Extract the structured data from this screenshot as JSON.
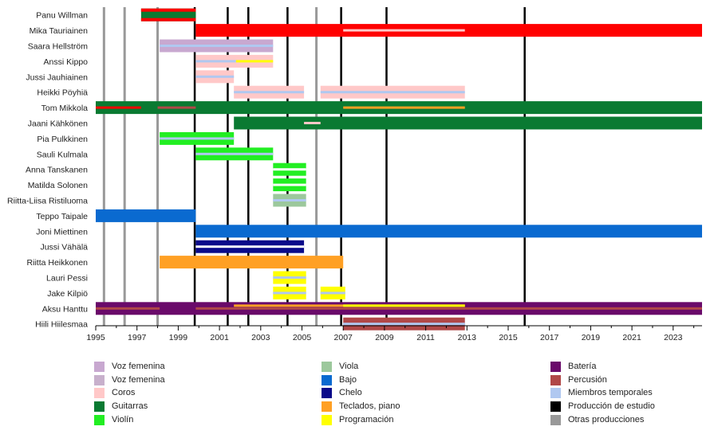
{
  "chart_data": {
    "type": "timeline",
    "x_ticks": [
      "1995",
      "1997",
      "1999",
      "2001",
      "2003",
      "2005",
      "2007",
      "2009",
      "2011",
      "2013",
      "2015",
      "2017",
      "2019",
      "2021",
      "2023"
    ],
    "xlim": [
      1995,
      2024.4
    ],
    "colors": {
      "voz_fem_1": "#c8a8d0",
      "voz_fem_2": "#c8b0cc",
      "coros": "#ffc8c8",
      "guitarras": "#0a7a32",
      "violin": "#22ee22",
      "viola": "#9cc89c",
      "bajo": "#0a6ad0",
      "chelo": "#0a0a8a",
      "teclados": "#ffa024",
      "programacion": "#ffff00",
      "bateria": "#6a0a6a",
      "percusion": "#b04848",
      "temporales": "#b0c8f0",
      "estudio": "#000000",
      "otras": "#999999",
      "voz_masc": "#ff0000"
    },
    "studio_releases": [
      1999.8,
      2001.4,
      2002.4,
      2004.3,
      2006.9,
      2009.1,
      2015.8
    ],
    "other_releases": [
      1995.4,
      1996.4,
      1998.0,
      2005.7
    ],
    "members": [
      {
        "name": "Panu Willman",
        "bars": [
          {
            "start": 1997.2,
            "end": 1999.85,
            "color": "guitarras",
            "stripes": [
              {
                "start": 1997.2,
                "end": 1999.85,
                "color": "voz_masc",
                "pos": "edges"
              }
            ]
          }
        ]
      },
      {
        "name": "Mika Tauriainen",
        "bars": [
          {
            "start": 1999.85,
            "end": 2024.4,
            "color": "voz_masc",
            "stripes": [
              {
                "start": 2007.0,
                "end": 2012.9,
                "color": "coros",
                "pos": "center"
              }
            ]
          }
        ]
      },
      {
        "name": "Saara Hellström",
        "bars": [
          {
            "start": 1998.1,
            "end": 2003.6,
            "color": "voz_fem_1",
            "stripes": [
              {
                "start": 1998.1,
                "end": 2003.6,
                "color": "temporales",
                "pos": "center"
              }
            ]
          }
        ]
      },
      {
        "name": "Anssi Kippo",
        "bars": [
          {
            "start": 1999.85,
            "end": 2003.6,
            "color": "coros",
            "stripes": [
              {
                "start": 1999.85,
                "end": 2001.8,
                "color": "temporales",
                "pos": "center"
              },
              {
                "start": 2001.8,
                "end": 2003.6,
                "color": "programacion",
                "pos": "center"
              }
            ]
          }
        ]
      },
      {
        "name": "Jussi Jauhiainen",
        "bars": [
          {
            "start": 1999.85,
            "end": 2001.7,
            "color": "coros",
            "stripes": [
              {
                "start": 1999.85,
                "end": 2001.7,
                "color": "temporales",
                "pos": "center"
              }
            ]
          }
        ]
      },
      {
        "name": "Heikki Pöyhiä",
        "bars": [
          {
            "start": 2001.7,
            "end": 2005.1,
            "color": "coros",
            "stripes": [
              {
                "start": 2001.7,
                "end": 2005.1,
                "color": "temporales",
                "pos": "center"
              }
            ]
          },
          {
            "start": 2005.9,
            "end": 2012.9,
            "color": "coros",
            "stripes": [
              {
                "start": 2005.9,
                "end": 2012.9,
                "color": "temporales",
                "pos": "center"
              }
            ]
          }
        ]
      },
      {
        "name": "Tom Mikkola",
        "bars": [
          {
            "start": 1995.0,
            "end": 2024.4,
            "color": "guitarras",
            "stripes": [
              {
                "start": 1995.0,
                "end": 1997.2,
                "color": "voz_masc",
                "pos": "center"
              },
              {
                "start": 1998.0,
                "end": 1999.85,
                "color": "percusion",
                "pos": "center"
              },
              {
                "start": 2007.0,
                "end": 2012.9,
                "color": "teclados",
                "pos": "center"
              }
            ]
          }
        ]
      },
      {
        "name": "Jaani Kähkönen",
        "bars": [
          {
            "start": 2001.7,
            "end": 2024.4,
            "color": "guitarras",
            "stripes": [
              {
                "start": 2005.1,
                "end": 2005.9,
                "color": "coros",
                "pos": "center"
              }
            ]
          }
        ]
      },
      {
        "name": "Pia Pulkkinen",
        "bars": [
          {
            "start": 1998.1,
            "end": 2001.7,
            "color": "violin",
            "stripes": [
              {
                "start": 1998.1,
                "end": 2001.7,
                "color": "temporales",
                "pos": "center"
              }
            ]
          }
        ]
      },
      {
        "name": "Sauli Kulmala",
        "bars": [
          {
            "start": 1999.85,
            "end": 2003.6,
            "color": "violin",
            "stripes": [
              {
                "start": 1999.85,
                "end": 2003.6,
                "color": "temporales",
                "pos": "center"
              }
            ]
          }
        ]
      },
      {
        "name": "Anna Tanskanen",
        "bars": [
          {
            "start": 2003.6,
            "end": 2005.2,
            "color": "violin",
            "stripes": [
              {
                "start": 2003.6,
                "end": 2005.2,
                "color": "#ffffff",
                "pos": "center"
              }
            ]
          }
        ]
      },
      {
        "name": "Matilda Solonen",
        "bars": [
          {
            "start": 2003.6,
            "end": 2005.2,
            "color": "violin",
            "stripes": [
              {
                "start": 2003.6,
                "end": 2005.2,
                "color": "#ffffff",
                "pos": "center"
              }
            ]
          }
        ]
      },
      {
        "name": "Riitta-Liisa Ristiluoma",
        "bars": [
          {
            "start": 2003.6,
            "end": 2005.2,
            "color": "viola",
            "stripes": [
              {
                "start": 2003.6,
                "end": 2005.2,
                "color": "temporales",
                "pos": "center"
              }
            ]
          }
        ]
      },
      {
        "name": "Teppo Taipale",
        "bars": [
          {
            "start": 1995.0,
            "end": 1999.85,
            "color": "bajo",
            "stripes": []
          }
        ]
      },
      {
        "name": "Joni Miettinen",
        "bars": [
          {
            "start": 1999.85,
            "end": 2024.4,
            "color": "bajo",
            "stripes": []
          }
        ]
      },
      {
        "name": "Jussi Vähälä",
        "bars": [
          {
            "start": 1999.85,
            "end": 2005.1,
            "color": "chelo",
            "stripes": [
              {
                "start": 1999.85,
                "end": 2005.1,
                "color": "#ffffff",
                "pos": "center"
              }
            ]
          }
        ]
      },
      {
        "name": "Riitta Heikkonen",
        "bars": [
          {
            "start": 1998.1,
            "end": 2007.0,
            "color": "teclados",
            "stripes": []
          }
        ]
      },
      {
        "name": "Lauri Pessi",
        "bars": [
          {
            "start": 2003.6,
            "end": 2005.2,
            "color": "programacion",
            "stripes": [
              {
                "start": 2003.6,
                "end": 2005.2,
                "color": "temporales",
                "pos": "center"
              }
            ]
          }
        ]
      },
      {
        "name": "Jake Kilpiö",
        "bars": [
          {
            "start": 2003.6,
            "end": 2005.2,
            "color": "programacion",
            "stripes": [
              {
                "start": 2003.6,
                "end": 2005.2,
                "color": "temporales",
                "pos": "center"
              }
            ]
          },
          {
            "start": 2005.9,
            "end": 2007.1,
            "color": "programacion",
            "stripes": [
              {
                "start": 2005.9,
                "end": 2007.1,
                "color": "temporales",
                "pos": "center"
              }
            ]
          }
        ]
      },
      {
        "name": "Aksu Hanttu",
        "bars": [
          {
            "start": 1995.0,
            "end": 2024.4,
            "color": "bateria",
            "stripes": [
              {
                "start": 1995.0,
                "end": 1998.1,
                "color": "percusion",
                "pos": "center"
              },
              {
                "start": 1999.85,
                "end": 2024.4,
                "color": "percusion",
                "pos": "center"
              },
              {
                "start": 2001.7,
                "end": 2012.9,
                "color": "teclados",
                "pos": "upper"
              },
              {
                "start": 2007.0,
                "end": 2012.9,
                "color": "programacion",
                "pos": "upper"
              }
            ]
          }
        ]
      },
      {
        "name": "Hiili Hiilesmaa",
        "bars": [
          {
            "start": 2007.0,
            "end": 2012.9,
            "color": "percusion",
            "stripes": [
              {
                "start": 2007.0,
                "end": 2012.9,
                "color": "temporales",
                "pos": "center"
              }
            ]
          }
        ]
      }
    ],
    "legend": [
      {
        "label": "Voz femenina",
        "color": "voz_fem_1"
      },
      {
        "label": "Voz femenina",
        "color": "voz_fem_2"
      },
      {
        "label": "Coros",
        "color": "coros"
      },
      {
        "label": "Guitarras",
        "color": "guitarras"
      },
      {
        "label": "Violín",
        "color": "violin"
      },
      {
        "label": "Viola",
        "color": "viola"
      },
      {
        "label": "Bajo",
        "color": "bajo"
      },
      {
        "label": "Chelo",
        "color": "chelo"
      },
      {
        "label": "Teclados, piano",
        "color": "teclados"
      },
      {
        "label": "Programación",
        "color": "programacion"
      },
      {
        "label": "Batería",
        "color": "bateria"
      },
      {
        "label": "Percusión",
        "color": "percusion"
      },
      {
        "label": "Miembros temporales",
        "color": "temporales"
      },
      {
        "label": "Producción de estudio",
        "color": "estudio"
      },
      {
        "label": "Otras producciones",
        "color": "otras"
      }
    ]
  }
}
